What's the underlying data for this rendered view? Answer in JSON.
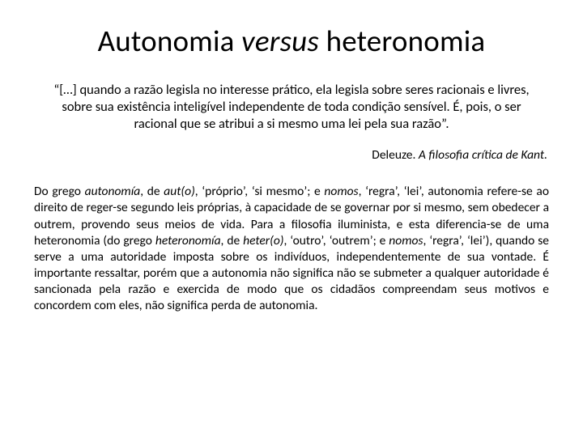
{
  "title_pre": "Autonomia ",
  "title_italic": "versus",
  "title_post": " heteronomia",
  "quote": "“[…] quando a razão legisla no interesse prático, ela legisla sobre seres racionais e livres, sobre sua existência inteligível independente de toda condição sensível. É, pois, o ser racional que se atribui a si mesmo uma lei pela sua razão”.",
  "citation_author": "Deleuze. ",
  "citation_work": "A filosofia crítica de Kant.",
  "body_1": "Do grego ",
  "body_2_i": "autonomía",
  "body_3": ", de ",
  "body_4_i": "aut(o)",
  "body_5": ", ‘próprio’, ‘si mesmo’; e ",
  "body_6_i": "nomos",
  "body_7": ", ‘regra’, ‘lei’, autonomia refere-se ao direito de reger-se segundo leis próprias, à capacidade de se governar por si mesmo, sem obedecer a outrem, provendo seus meios de vida. Para a filosofia iluminista, e esta diferencia-se de uma heteronomia (do grego ",
  "body_8_i": "heteronomía",
  "body_9": ", de ",
  "body_10_i": "heter(o)",
  "body_11": ", ‘outro’, ‘outrem’; e ",
  "body_12_i": "nomos",
  "body_13": ", ‘regra’, ‘lei’), quando se serve a uma autoridade imposta sobre os indivíduos, independentemente de sua vontade. É importante ressaltar, porém que a autonomia não significa não se submeter a qualquer autoridade é sancionada pela razão e exercida de modo que os cidadãos compreendam seus motivos e concordem com eles, não significa perda de autonomia.",
  "colors": {
    "background": "#ffffff",
    "text": "#000000"
  },
  "typography": {
    "title_fontsize": 37,
    "quote_fontsize": 16.5,
    "citation_fontsize": 15.5,
    "body_fontsize": 15.5,
    "font_family": "Calibri"
  }
}
